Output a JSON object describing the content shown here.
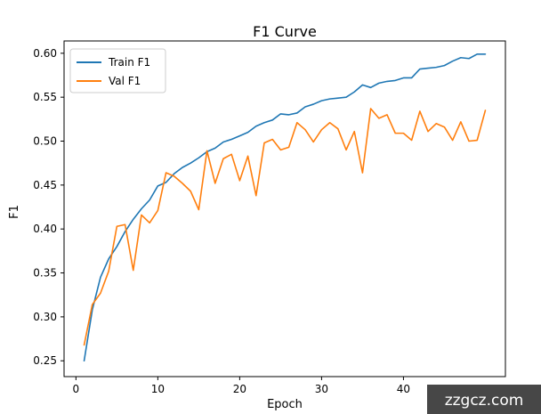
{
  "chart_data": {
    "type": "line",
    "title": "F1 Curve",
    "xlabel": "Epoch",
    "ylabel": "F1",
    "xlim": [
      -1.45,
      52.45
    ],
    "ylim": [
      0.232,
      0.614
    ],
    "xticks": [
      0,
      10,
      20,
      30,
      40
    ],
    "xtick_labels": [
      "0",
      "10",
      "20",
      "30",
      "40"
    ],
    "yticks": [
      0.25,
      0.3,
      0.35,
      0.4,
      0.45,
      0.5,
      0.55,
      0.6
    ],
    "ytick_labels": [
      "0.25",
      "0.30",
      "0.35",
      "0.40",
      "0.45",
      "0.50",
      "0.55",
      "0.60"
    ],
    "grid": false,
    "legend_position": "upper-left",
    "x": [
      1,
      2,
      3,
      4,
      5,
      6,
      7,
      8,
      9,
      10,
      11,
      12,
      13,
      14,
      15,
      16,
      17,
      18,
      19,
      20,
      21,
      22,
      23,
      24,
      25,
      26,
      27,
      28,
      29,
      30,
      31,
      32,
      33,
      34,
      35,
      36,
      37,
      38,
      39,
      40,
      41,
      42,
      43,
      44,
      45,
      46,
      47,
      48,
      49,
      50
    ],
    "series": [
      {
        "name": "Train F1",
        "color": "#1f77b4",
        "values": [
          0.25,
          0.308,
          0.345,
          0.366,
          0.38,
          0.397,
          0.411,
          0.423,
          0.433,
          0.449,
          0.453,
          0.463,
          0.47,
          0.475,
          0.481,
          0.488,
          0.492,
          0.499,
          0.502,
          0.506,
          0.51,
          0.517,
          0.521,
          0.524,
          0.531,
          0.53,
          0.532,
          0.539,
          0.542,
          0.546,
          0.548,
          0.549,
          0.55,
          0.556,
          0.564,
          0.561,
          0.566,
          0.568,
          0.569,
          0.572,
          0.572,
          0.582,
          0.583,
          0.584,
          0.586,
          0.591,
          0.595,
          0.594,
          0.599,
          0.599
        ]
      },
      {
        "name": "Val F1",
        "color": "#ff7f0e",
        "values": [
          0.268,
          0.314,
          0.327,
          0.352,
          0.403,
          0.405,
          0.353,
          0.416,
          0.407,
          0.421,
          0.464,
          0.46,
          0.452,
          0.443,
          0.422,
          0.489,
          0.452,
          0.48,
          0.485,
          0.455,
          0.483,
          0.438,
          0.498,
          0.502,
          0.49,
          0.493,
          0.521,
          0.513,
          0.499,
          0.513,
          0.521,
          0.514,
          0.49,
          0.511,
          0.464,
          0.537,
          0.526,
          0.53,
          0.509,
          0.509,
          0.501,
          0.534,
          0.511,
          0.52,
          0.516,
          0.501,
          0.522,
          0.5,
          0.501,
          0.535
        ]
      }
    ]
  },
  "watermark": {
    "text": "zzgcz.com",
    "color": "#000000"
  }
}
